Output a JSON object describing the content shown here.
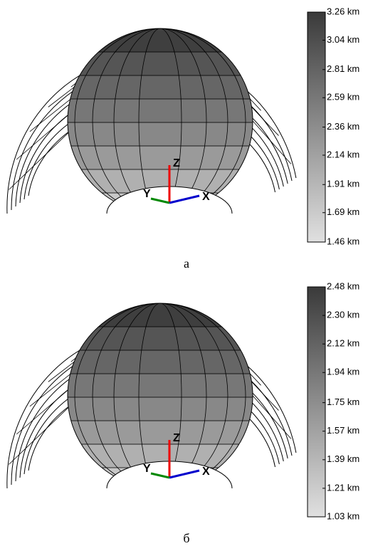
{
  "panels": [
    {
      "caption": "а",
      "axes": {
        "x": "X",
        "y": "Y",
        "z": "Z"
      },
      "colorbar": {
        "lim": [
          1.46,
          3.26
        ],
        "ticks": [
          {
            "value": 3.26,
            "label": "3.26 km"
          },
          {
            "value": 3.04,
            "label": "3.04 km"
          },
          {
            "value": 2.81,
            "label": "2.81 km"
          },
          {
            "value": 2.59,
            "label": "2.59 km"
          },
          {
            "value": 2.36,
            "label": "2.36 km"
          },
          {
            "value": 2.14,
            "label": "2.14 km"
          },
          {
            "value": 1.91,
            "label": "1.91 km"
          },
          {
            "value": 1.69,
            "label": "1.69 km"
          },
          {
            "value": 1.46,
            "label": "1.46 km"
          }
        ]
      }
    },
    {
      "caption": "б",
      "axes": {
        "x": "X",
        "y": "Y",
        "z": "Z"
      },
      "colorbar": {
        "lim": [
          1.03,
          2.48
        ],
        "ticks": [
          {
            "value": 2.48,
            "label": "2.48 km"
          },
          {
            "value": 2.3,
            "label": "2.30 km"
          },
          {
            "value": 2.12,
            "label": "2.12 km"
          },
          {
            "value": 1.94,
            "label": "1.94 km"
          },
          {
            "value": 1.75,
            "label": "1.75 km"
          },
          {
            "value": 1.57,
            "label": "1.57 km"
          },
          {
            "value": 1.39,
            "label": "1.39 km"
          },
          {
            "value": 1.21,
            "label": "1.21 km"
          },
          {
            "value": 1.03,
            "label": "1.03 km"
          }
        ]
      }
    }
  ]
}
